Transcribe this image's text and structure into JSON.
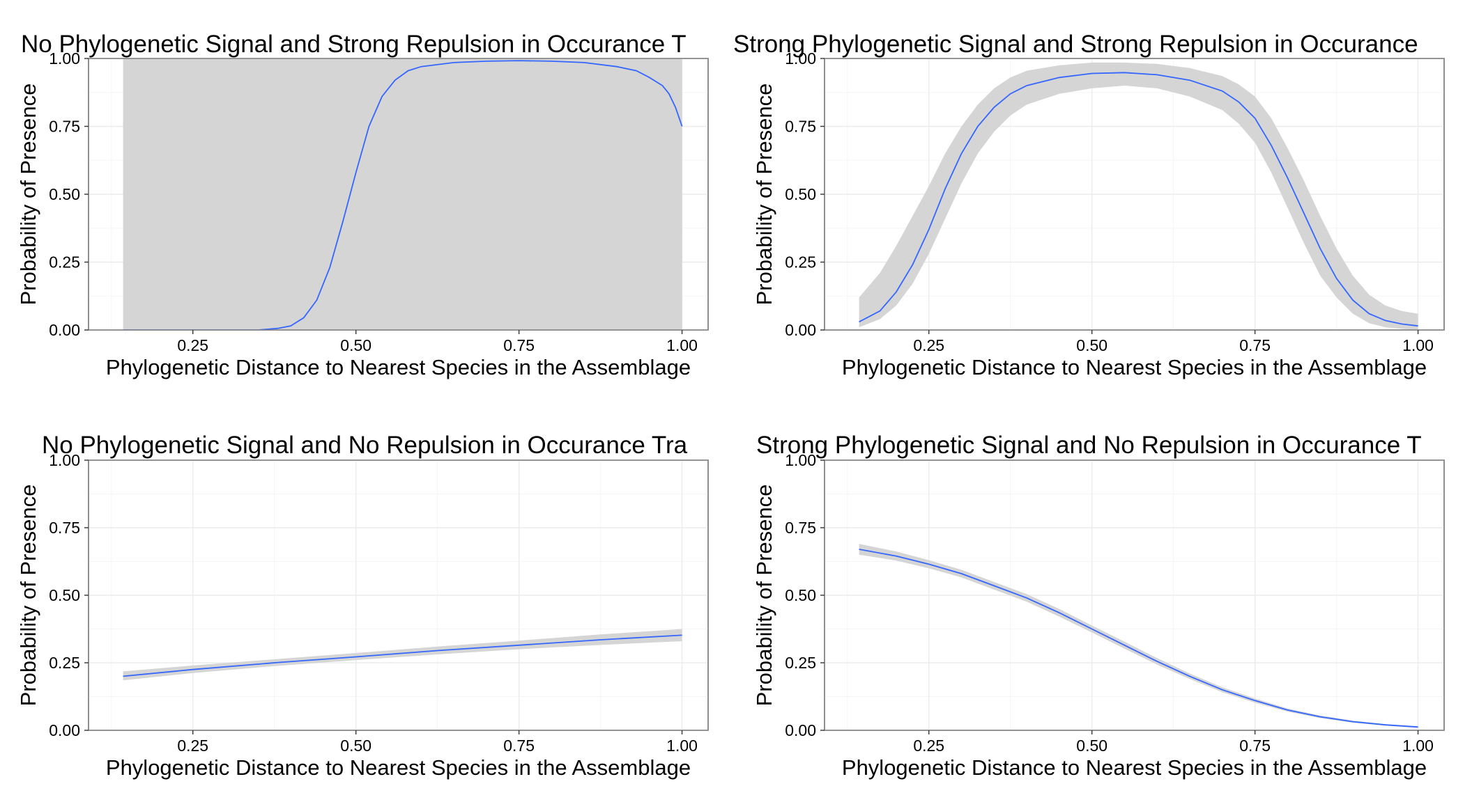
{
  "colors": {
    "line": "#3366FF",
    "ribbon": "#D5D5D5",
    "panel_border": "#7F7F7F",
    "grid": "#EBEBEB"
  },
  "chart_data": [
    {
      "type": "line",
      "title": "No Phylogenetic Signal and Strong Repulsion in Occurance T",
      "xlabel": "Phylogenetic Distance to Nearest Species in the Assemblage",
      "ylabel": "Probability of Presence",
      "xlim": [
        0.09,
        1.04
      ],
      "ylim": [
        0.0,
        1.0
      ],
      "x_ticks": [
        "0.25",
        "0.50",
        "0.75",
        "1.00"
      ],
      "y_ticks": [
        "0.00",
        "0.25",
        "0.50",
        "0.75",
        "1.00"
      ],
      "grid": true,
      "series": [
        {
          "x": [
            0.143,
            0.3,
            0.35,
            0.38,
            0.4,
            0.42,
            0.44,
            0.46,
            0.48,
            0.5,
            0.52,
            0.54,
            0.56,
            0.58,
            0.6,
            0.65,
            0.7,
            0.75,
            0.8,
            0.85,
            0.9,
            0.93,
            0.95,
            0.97,
            0.98,
            0.99,
            1.0
          ],
          "y": [
            0.0,
            0.0,
            0.0,
            0.006,
            0.015,
            0.045,
            0.11,
            0.23,
            0.4,
            0.58,
            0.75,
            0.86,
            0.92,
            0.955,
            0.97,
            0.985,
            0.99,
            0.992,
            0.99,
            0.985,
            0.97,
            0.955,
            0.93,
            0.9,
            0.87,
            0.82,
            0.75
          ],
          "lower": [
            0.0,
            0.0,
            0.0,
            0.0,
            0.0,
            0.0,
            0.0,
            0.0,
            0.0,
            0.0,
            0.0,
            0.0,
            0.0,
            0.0,
            0.0,
            0.0,
            0.0,
            0.0,
            0.0,
            0.0,
            0.0,
            0.0,
            0.0,
            0.0,
            0.0,
            0.0,
            0.0
          ],
          "upper": [
            1.0,
            1.0,
            1.0,
            1.0,
            1.0,
            1.0,
            1.0,
            1.0,
            1.0,
            1.0,
            1.0,
            1.0,
            1.0,
            1.0,
            1.0,
            1.0,
            1.0,
            1.0,
            1.0,
            1.0,
            1.0,
            1.0,
            1.0,
            1.0,
            1.0,
            1.0,
            1.0
          ]
        }
      ]
    },
    {
      "type": "line",
      "title": "Strong Phylogenetic Signal and Strong Repulsion in Occurance",
      "xlabel": "Phylogenetic Distance to Nearest Species in the Assemblage",
      "ylabel": "Probability of Presence",
      "xlim": [
        0.09,
        1.04
      ],
      "ylim": [
        0.0,
        1.0
      ],
      "x_ticks": [
        "0.25",
        "0.50",
        "0.75",
        "1.00"
      ],
      "y_ticks": [
        "0.00",
        "0.25",
        "0.50",
        "0.75",
        "1.00"
      ],
      "grid": true,
      "series": [
        {
          "x": [
            0.143,
            0.175,
            0.2,
            0.225,
            0.25,
            0.275,
            0.3,
            0.325,
            0.35,
            0.375,
            0.4,
            0.45,
            0.5,
            0.55,
            0.6,
            0.65,
            0.7,
            0.725,
            0.75,
            0.775,
            0.8,
            0.825,
            0.85,
            0.875,
            0.9,
            0.925,
            0.95,
            0.975,
            1.0
          ],
          "y": [
            0.03,
            0.07,
            0.14,
            0.24,
            0.37,
            0.52,
            0.65,
            0.75,
            0.82,
            0.87,
            0.9,
            0.93,
            0.945,
            0.948,
            0.94,
            0.92,
            0.88,
            0.84,
            0.78,
            0.68,
            0.56,
            0.43,
            0.3,
            0.19,
            0.11,
            0.06,
            0.035,
            0.022,
            0.015
          ],
          "lower": [
            0.01,
            0.04,
            0.09,
            0.17,
            0.28,
            0.41,
            0.54,
            0.65,
            0.73,
            0.79,
            0.83,
            0.87,
            0.89,
            0.9,
            0.89,
            0.86,
            0.81,
            0.76,
            0.69,
            0.58,
            0.45,
            0.32,
            0.2,
            0.12,
            0.06,
            0.025,
            0.01,
            0.004,
            0.0
          ],
          "upper": [
            0.12,
            0.21,
            0.31,
            0.42,
            0.53,
            0.65,
            0.75,
            0.83,
            0.89,
            0.93,
            0.955,
            0.975,
            0.985,
            0.985,
            0.98,
            0.965,
            0.935,
            0.905,
            0.86,
            0.78,
            0.67,
            0.55,
            0.42,
            0.3,
            0.2,
            0.13,
            0.09,
            0.07,
            0.06
          ]
        }
      ]
    },
    {
      "type": "line",
      "title": "No Phylogenetic Signal and No Repulsion in Occurance Tra",
      "xlabel": "Phylogenetic Distance to Nearest Species in the Assemblage",
      "ylabel": "Probability of Presence",
      "xlim": [
        0.09,
        1.04
      ],
      "ylim": [
        0.0,
        1.0
      ],
      "x_ticks": [
        "0.25",
        "0.50",
        "0.75",
        "1.00"
      ],
      "y_ticks": [
        "0.00",
        "0.25",
        "0.50",
        "0.75",
        "1.00"
      ],
      "grid": true,
      "series": [
        {
          "x": [
            0.143,
            0.25,
            0.375,
            0.5,
            0.625,
            0.75,
            0.875,
            1.0
          ],
          "y": [
            0.2,
            0.225,
            0.25,
            0.272,
            0.295,
            0.315,
            0.335,
            0.352
          ],
          "lower": [
            0.185,
            0.212,
            0.238,
            0.26,
            0.281,
            0.3,
            0.316,
            0.33
          ],
          "upper": [
            0.218,
            0.24,
            0.263,
            0.286,
            0.31,
            0.332,
            0.355,
            0.375
          ]
        }
      ]
    },
    {
      "type": "line",
      "title": "Strong Phylogenetic Signal and No Repulsion in Occurance T",
      "xlabel": "Phylogenetic Distance to Nearest Species in the Assemblage",
      "ylabel": "Probability of Presence",
      "xlim": [
        0.09,
        1.04
      ],
      "ylim": [
        0.0,
        1.0
      ],
      "x_ticks": [
        "0.25",
        "0.50",
        "0.75",
        "1.00"
      ],
      "y_ticks": [
        "0.00",
        "0.25",
        "0.50",
        "0.75",
        "1.00"
      ],
      "grid": true,
      "series": [
        {
          "x": [
            0.143,
            0.2,
            0.25,
            0.3,
            0.35,
            0.4,
            0.45,
            0.5,
            0.55,
            0.6,
            0.65,
            0.7,
            0.75,
            0.8,
            0.85,
            0.9,
            0.95,
            1.0
          ],
          "y": [
            0.67,
            0.645,
            0.615,
            0.58,
            0.535,
            0.49,
            0.435,
            0.375,
            0.315,
            0.255,
            0.2,
            0.15,
            0.11,
            0.075,
            0.05,
            0.032,
            0.02,
            0.012
          ],
          "lower": [
            0.65,
            0.628,
            0.6,
            0.566,
            0.521,
            0.476,
            0.421,
            0.362,
            0.302,
            0.243,
            0.19,
            0.141,
            0.102,
            0.069,
            0.045,
            0.028,
            0.017,
            0.009
          ],
          "upper": [
            0.69,
            0.662,
            0.63,
            0.594,
            0.549,
            0.504,
            0.449,
            0.388,
            0.328,
            0.267,
            0.21,
            0.159,
            0.118,
            0.081,
            0.055,
            0.036,
            0.023,
            0.015
          ]
        }
      ]
    }
  ]
}
